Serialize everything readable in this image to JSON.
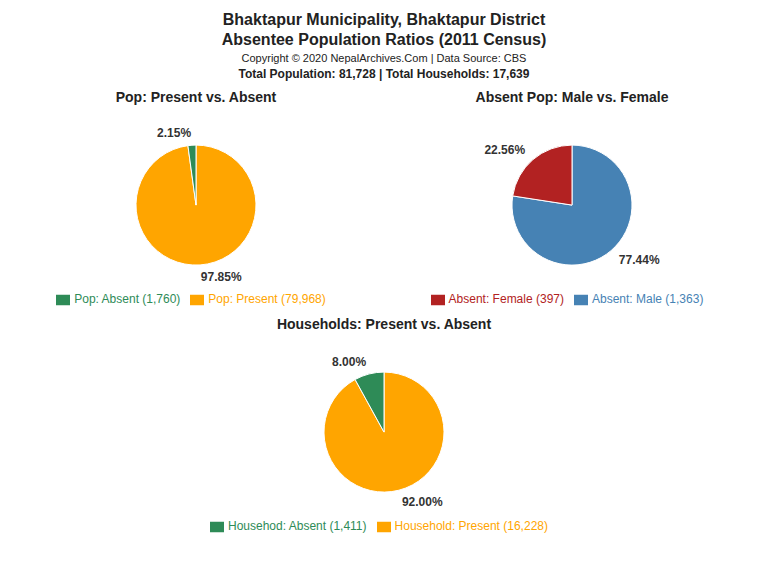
{
  "title": "Bhaktapur Municipality, Bhaktapur District",
  "subtitle": "Absentee Population Ratios (2011 Census)",
  "annotations": [
    "Copyright © 2020 NepalArchives.Com | Data Source: CBS",
    "Total Population: 81,728 | Total Households: 17,639"
  ],
  "chart_data": [
    {
      "type": "pie",
      "title": "Pop: Present vs. Absent",
      "categories": [
        "Pop: Present (79,968)",
        "Pop: Absent (1,760)"
      ],
      "values": [
        97.85,
        2.15
      ],
      "value_labels": [
        "97.85%",
        "2.15%"
      ],
      "colors": [
        "#FFA500",
        "#2E8B57"
      ],
      "data_labels": true,
      "legend": "bottom"
    },
    {
      "type": "pie",
      "title": "Absent Pop: Male vs. Female",
      "categories": [
        "Absent: Male (1,363)",
        "Absent: Female (397)"
      ],
      "values": [
        77.44,
        22.56
      ],
      "value_labels": [
        "77.44%",
        "22.56%"
      ],
      "colors": [
        "#4682B4",
        "#B22222"
      ],
      "data_labels": true,
      "legend": "bottom"
    },
    {
      "type": "pie",
      "title": "Households: Present vs. Absent",
      "categories": [
        "Household: Present (16,228)",
        "Househod: Absent (1,411)"
      ],
      "values": [
        92.0,
        8.0
      ],
      "value_labels": [
        "92.00%",
        "8.00%"
      ],
      "colors": [
        "#FFA500",
        "#2E8B57"
      ],
      "data_labels": true,
      "legend": "bottom"
    }
  ]
}
